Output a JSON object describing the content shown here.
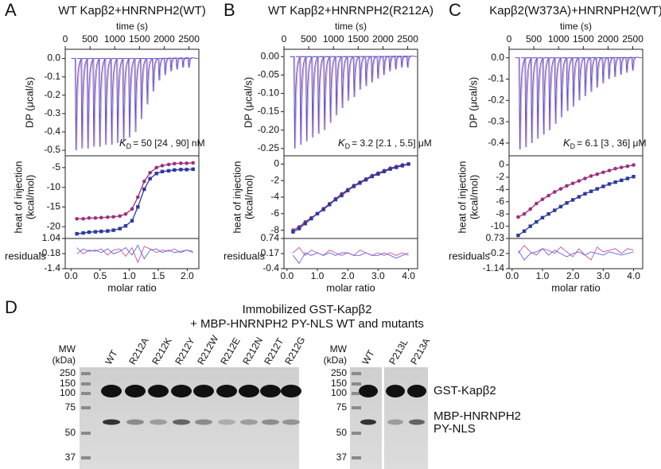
{
  "panels": [
    {
      "letter": "A",
      "title": "WT Kapβ2+HNRNPH2(WT)",
      "time_label": "time (s)",
      "time_ticks": [
        0,
        500,
        1000,
        1500,
        2000,
        2500
      ],
      "time_lim": [
        0,
        2700
      ],
      "dp_label": "DP (μcal/s)",
      "dp_ticks": [
        {
          "value": 0,
          "label": "0.0"
        },
        -0.1,
        -0.2,
        -0.3,
        -0.4,
        -0.5
      ],
      "dp_lim": [
        -0.53,
        0.05
      ],
      "injection_times": [
        200,
        320,
        440,
        560,
        680,
        800,
        920,
        1040,
        1160,
        1280,
        1400,
        1520,
        1640,
        1760,
        1880,
        2000,
        2120,
        2240,
        2360,
        2480
      ],
      "injection_peaks": [
        -0.5,
        -0.49,
        -0.49,
        -0.48,
        -0.48,
        -0.47,
        -0.47,
        -0.46,
        -0.45,
        -0.43,
        -0.4,
        -0.33,
        -0.25,
        -0.18,
        -0.12,
        -0.09,
        -0.07,
        -0.06,
        -0.05,
        -0.05
      ],
      "kd_symbol": "K",
      "kd_sub": "D",
      "kd_text": "= 50 [24 , 90] nM",
      "heat_label": [
        "heat of injection",
        "(kcal/mol)"
      ],
      "heat_ticks": [
        -5,
        -10,
        -15,
        -20
      ],
      "heat_lim": [
        -23,
        -2
      ],
      "residual_label": "residuals",
      "residual_ticks": [
        1.04,
        -0.18,
        -1.4
      ],
      "residual_lim": [
        -1.4,
        1.04
      ],
      "ratio_label": "molar ratio",
      "ratio_ticks": [
        {
          "value": 0,
          "label": "0.0"
        },
        0.5,
        {
          "value": 1,
          "label": "1.0"
        },
        1.5,
        {
          "value": 2,
          "label": "2.0"
        }
      ],
      "ratio_lim": [
        -0.1,
        2.2
      ],
      "molar_ratio": [
        0.1,
        0.21,
        0.31,
        0.42,
        0.52,
        0.63,
        0.73,
        0.84,
        0.94,
        1.05,
        1.15,
        1.26,
        1.36,
        1.47,
        1.57,
        1.68,
        1.78,
        1.89,
        1.99,
        2.1
      ],
      "series": [
        {
          "color": "#9c2f7a",
          "values": [
            -18,
            -18,
            -17.8,
            -17.8,
            -17.7,
            -17.6,
            -17.5,
            -17.3,
            -16.8,
            -15.5,
            -12.5,
            -8.5,
            -6.3,
            -5,
            -4.5,
            -4.2,
            -4,
            -3.9,
            -3.9,
            -3.8
          ],
          "residuals": [
            0.3,
            -0.2,
            0.1,
            0,
            0.2,
            -0.3,
            0.1,
            0.2,
            -0.4,
            0.3,
            -0.9,
            0.4,
            0.2,
            -0.1,
            0.1,
            0,
            0.2,
            -0.1,
            0.1,
            0
          ]
        },
        {
          "color": "#2b3a9c",
          "values": [
            -21.8,
            -21.6,
            -21.4,
            -21.3,
            -21.2,
            -21.1,
            -20.9,
            -20.5,
            -19.8,
            -18.5,
            -15,
            -10.5,
            -7.8,
            -6.5,
            -6,
            -5.8,
            -5.6,
            -5.5,
            -5.5,
            -5.4
          ],
          "residuals": [
            -0.2,
            0.2,
            0,
            0.1,
            -0.1,
            0.2,
            -0.2,
            0,
            0.3,
            -0.3,
            0.5,
            -0.6,
            0.1,
            0.2,
            -0.1,
            0.1,
            -0.1,
            0,
            0.1,
            -0.1
          ]
        }
      ]
    },
    {
      "letter": "B",
      "title": "WT Kapβ2+HNRNPH2(R212A)",
      "time_label": "time (s)",
      "time_ticks": [
        0,
        500,
        1000,
        1500,
        2000,
        2500
      ],
      "time_lim": [
        0,
        2700
      ],
      "dp_label": "DP (μcal/s)",
      "dp_ticks": [
        {
          "value": 0,
          "label": "0.00"
        },
        -0.05,
        {
          "value": -0.1,
          "label": "-0.10"
        },
        -0.15,
        {
          "value": -0.2,
          "label": "-0.20"
        },
        -0.25
      ],
      "dp_lim": [
        -0.27,
        0.02
      ],
      "injection_times": [
        200,
        320,
        440,
        560,
        680,
        800,
        920,
        1040,
        1160,
        1280,
        1400,
        1520,
        1640,
        1760,
        1880,
        2000,
        2120,
        2240,
        2360,
        2480
      ],
      "injection_peaks": [
        -0.25,
        -0.24,
        -0.23,
        -0.22,
        -0.21,
        -0.2,
        -0.18,
        -0.16,
        -0.14,
        -0.12,
        -0.11,
        -0.09,
        -0.08,
        -0.07,
        -0.06,
        -0.05,
        -0.04,
        -0.035,
        -0.03,
        -0.03
      ],
      "kd_symbol": "K",
      "kd_sub": "D",
      "kd_text": "= 3.2 [2.1 , 5.5] μM",
      "heat_label": [
        "heat of injection",
        "(kcal/mol)"
      ],
      "heat_ticks": [
        0,
        -2,
        -4,
        -6,
        -8
      ],
      "heat_lim": [
        -9,
        1
      ],
      "residual_label": "residuals",
      "residual_ticks": [
        0.74,
        0.17,
        -0.4
      ],
      "residual_lim": [
        -0.4,
        0.74
      ],
      "ratio_label": "molar ratio",
      "ratio_ticks": [
        {
          "value": 0,
          "label": "0.0"
        },
        {
          "value": 1,
          "label": "1.0"
        },
        {
          "value": 2,
          "label": "2.0"
        },
        {
          "value": 3,
          "label": "3.0"
        },
        {
          "value": 4,
          "label": "4.0"
        }
      ],
      "ratio_lim": [
        -0.1,
        4.3
      ],
      "molar_ratio": [
        0.2,
        0.4,
        0.6,
        0.8,
        1,
        1.2,
        1.4,
        1.6,
        1.8,
        2,
        2.2,
        2.4,
        2.6,
        2.8,
        3,
        3.2,
        3.4,
        3.6,
        3.8,
        4
      ],
      "series": [
        {
          "color": "#9c2f7a",
          "values": [
            -8,
            -7.6,
            -7,
            -6.5,
            -6,
            -5.4,
            -4.8,
            -4.2,
            -3.6,
            -3.1,
            -2.6,
            -2.2,
            -1.8,
            -1.4,
            -1.1,
            -0.8,
            -0.5,
            -0.3,
            -0.1,
            0
          ],
          "residuals": [
            0.2,
            0.4,
            0.1,
            0.3,
            0.2,
            0.1,
            0.3,
            0.2,
            0.1,
            0.2,
            0.1,
            0.3,
            0.2,
            0.1,
            0.2,
            0.1,
            0.2,
            0.1,
            0.2,
            0.1
          ]
        },
        {
          "color": "#2b3a9c",
          "values": [
            -8.2,
            -7.8,
            -7.2,
            -6.6,
            -6,
            -5.5,
            -4.9,
            -4.3,
            -3.8,
            -3.2,
            -2.7,
            -2.3,
            -1.9,
            -1.5,
            -1.2,
            -0.9,
            -0.6,
            -0.4,
            -0.2,
            0
          ],
          "residuals": [
            0.1,
            -0.2,
            0.2,
            0.1,
            0.2,
            0.1,
            0.2,
            0.1,
            0.2,
            0.2,
            0.1,
            0.1,
            0.2,
            0.1,
            0.1,
            0.2,
            0.1,
            0,
            0.1,
            0.2
          ]
        }
      ]
    },
    {
      "letter": "C",
      "title": "Kapβ2(W373A)+HNRNPH2(WT)",
      "time_label": "time (s)",
      "time_ticks": [
        0,
        500,
        1000,
        1500,
        2000,
        2500
      ],
      "time_lim": [
        0,
        2700
      ],
      "dp_label": "DP (μcal/s)",
      "dp_ticks": [
        {
          "value": 0,
          "label": "0.0"
        },
        -0.1,
        -0.2,
        -0.3,
        -0.4
      ],
      "dp_lim": [
        -0.46,
        0.04
      ],
      "injection_times": [
        200,
        320,
        440,
        560,
        680,
        800,
        920,
        1040,
        1160,
        1280,
        1400,
        1520,
        1640,
        1760,
        1880,
        2000,
        2120,
        2240,
        2360,
        2480
      ],
      "injection_peaks": [
        -0.43,
        -0.42,
        -0.4,
        -0.38,
        -0.36,
        -0.34,
        -0.31,
        -0.28,
        -0.25,
        -0.23,
        -0.2,
        -0.18,
        -0.16,
        -0.14,
        -0.12,
        -0.1,
        -0.09,
        -0.08,
        -0.07,
        -0.06
      ],
      "kd_symbol": "K",
      "kd_sub": "D",
      "kd_text": "= 6.1 [3 , 36] μM",
      "heat_label": [
        "heat of injection",
        "(kcal/mol)"
      ],
      "heat_ticks": [
        0,
        -2,
        -4,
        -6,
        -8,
        -10
      ],
      "heat_lim": [
        -12,
        1.5
      ],
      "residual_label": "residuals",
      "residual_ticks": [
        0.73,
        -0.2,
        -1.14
      ],
      "residual_lim": [
        -1.14,
        0.73
      ],
      "ratio_label": "molar ratio",
      "ratio_ticks": [
        {
          "value": 0,
          "label": "0.0"
        },
        {
          "value": 1,
          "label": "1.0"
        },
        {
          "value": 2,
          "label": "2.0"
        },
        {
          "value": 3,
          "label": "3.0"
        },
        {
          "value": 4,
          "label": "4.0"
        }
      ],
      "ratio_lim": [
        -0.1,
        4.3
      ],
      "molar_ratio": [
        0.2,
        0.4,
        0.6,
        0.8,
        1,
        1.2,
        1.4,
        1.6,
        1.8,
        2,
        2.2,
        2.4,
        2.6,
        2.8,
        3,
        3.2,
        3.4,
        3.6,
        3.8,
        4
      ],
      "series": [
        {
          "color": "#9c2f7a",
          "values": [
            -8.5,
            -8,
            -7.2,
            -6.3,
            -5.6,
            -5,
            -4.4,
            -3.9,
            -3.4,
            -3,
            -2.6,
            -2.2,
            -1.8,
            -1.5,
            -1.2,
            -0.9,
            -0.6,
            -0.4,
            -0.2,
            0
          ],
          "residuals": [
            -0.2,
            0.3,
            -0.1,
            -0.3,
            0.1,
            0,
            -0.2,
            0.2,
            -0.1,
            -0.4,
            0.1,
            -0.3,
            -0.6,
            0.2,
            -0.1,
            0,
            0.1,
            -0.2,
            0.1,
            0
          ]
        },
        {
          "color": "#2b3a9c",
          "values": [
            -11.5,
            -10.8,
            -10,
            -9.3,
            -8.6,
            -8,
            -7.4,
            -6.8,
            -6.2,
            -5.7,
            -5.2,
            -4.7,
            -4.3,
            -3.9,
            -3.5,
            -3.1,
            -2.8,
            -2.5,
            -2.2,
            -1.9
          ],
          "residuals": [
            0,
            -0.6,
            -0.2,
            -0.1,
            0.1,
            -0.3,
            0,
            -0.2,
            -0.4,
            -0.2,
            -0.1,
            -0.3,
            -0.1,
            -0.2,
            -0.3,
            -0.1,
            -0.2,
            -0.3,
            -0.2,
            -0.1
          ]
        }
      ]
    }
  ],
  "gel": {
    "letter": "D",
    "title": [
      "Immobilized GST-Kapβ2",
      "+ MBP-HNRNPH2 PY-NLS WT and mutants"
    ],
    "mw_label": [
      "MW",
      "(kDa)"
    ],
    "mw_ticks": [
      250,
      150,
      100,
      75,
      50,
      37
    ],
    "lanes_left": [
      "WT",
      "R212A",
      "R212K",
      "R212Y",
      "R212W",
      "R212E",
      "R212N",
      "R212T",
      "R212G"
    ],
    "lanes_right": [
      "WT",
      "P213L",
      "P213A"
    ],
    "band_labels": [
      "GST-Kapβ2",
      "MBP-HNRNPH2",
      "PY-NLS"
    ]
  }
}
